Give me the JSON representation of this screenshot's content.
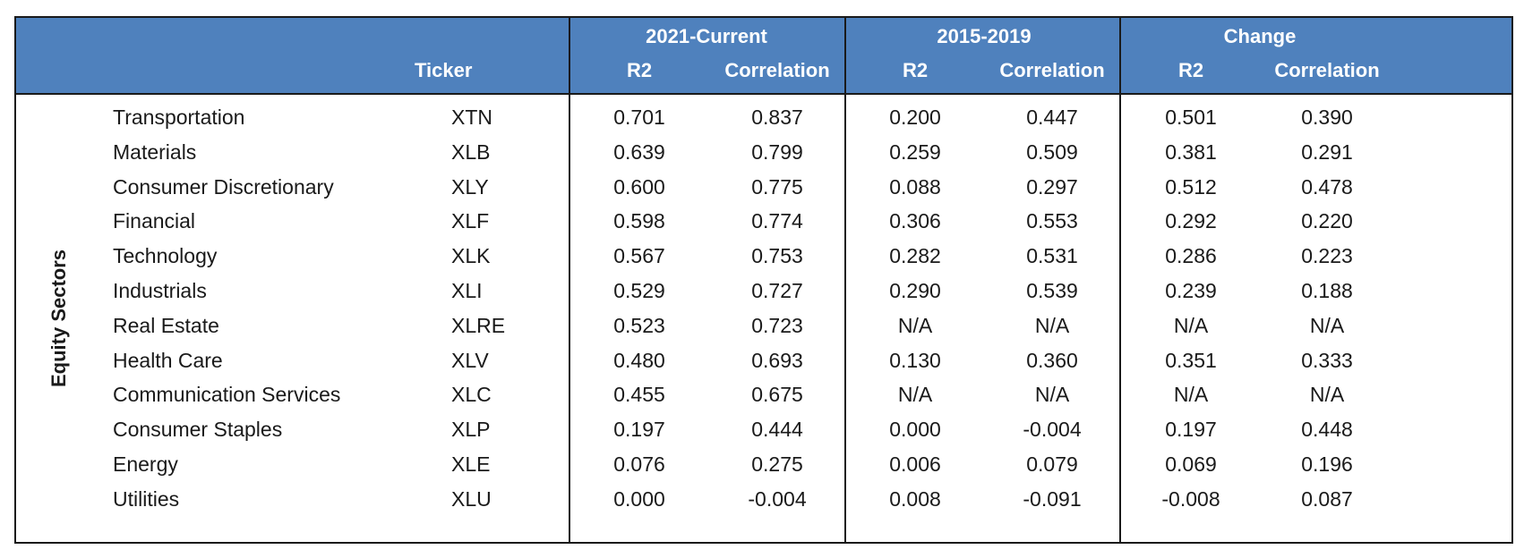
{
  "table": {
    "row_group_label": "Equity Sectors",
    "ticker_header": "Ticker",
    "groups": [
      "2021-Current",
      "2015-2019",
      "Change"
    ],
    "subheaders": [
      "R2",
      "Correlation",
      "R2",
      "Correlation",
      "R2",
      "Correlation"
    ]
  },
  "chart_data": {
    "type": "table",
    "row_group": "Equity Sectors",
    "columns": [
      "Ticker",
      "2021-Current R2",
      "2021-Current Correlation",
      "2015-2019 R2",
      "2015-2019 Correlation",
      "Change R2",
      "Change Correlation"
    ],
    "rows": [
      {
        "name": "Transportation",
        "ticker": "XTN",
        "values": [
          "0.701",
          "0.837",
          "0.200",
          "0.447",
          "0.501",
          "0.390"
        ]
      },
      {
        "name": "Materials",
        "ticker": "XLB",
        "values": [
          "0.639",
          "0.799",
          "0.259",
          "0.509",
          "0.381",
          "0.291"
        ]
      },
      {
        "name": "Consumer Discretionary",
        "ticker": "XLY",
        "values": [
          "0.600",
          "0.775",
          "0.088",
          "0.297",
          "0.512",
          "0.478"
        ]
      },
      {
        "name": "Financial",
        "ticker": "XLF",
        "values": [
          "0.598",
          "0.774",
          "0.306",
          "0.553",
          "0.292",
          "0.220"
        ]
      },
      {
        "name": "Technology",
        "ticker": "XLK",
        "values": [
          "0.567",
          "0.753",
          "0.282",
          "0.531",
          "0.286",
          "0.223"
        ]
      },
      {
        "name": "Industrials",
        "ticker": "XLI",
        "values": [
          "0.529",
          "0.727",
          "0.290",
          "0.539",
          "0.239",
          "0.188"
        ]
      },
      {
        "name": "Real Estate",
        "ticker": "XLRE",
        "values": [
          "0.523",
          "0.723",
          "N/A",
          "N/A",
          "N/A",
          "N/A"
        ]
      },
      {
        "name": "Health Care",
        "ticker": "XLV",
        "values": [
          "0.480",
          "0.693",
          "0.130",
          "0.360",
          "0.351",
          "0.333"
        ]
      },
      {
        "name": "Communication Services",
        "ticker": "XLC",
        "values": [
          "0.455",
          "0.675",
          "N/A",
          "N/A",
          "N/A",
          "N/A"
        ]
      },
      {
        "name": "Consumer Staples",
        "ticker": "XLP",
        "values": [
          "0.197",
          "0.444",
          "0.000",
          "-0.004",
          "0.197",
          "0.448"
        ]
      },
      {
        "name": "Energy",
        "ticker": "XLE",
        "values": [
          "0.076",
          "0.275",
          "0.006",
          "0.079",
          "0.069",
          "0.196"
        ]
      },
      {
        "name": "Utilities",
        "ticker": "XLU",
        "values": [
          "0.000",
          "-0.004",
          "0.008",
          "-0.091",
          "-0.008",
          "0.087"
        ]
      }
    ]
  }
}
